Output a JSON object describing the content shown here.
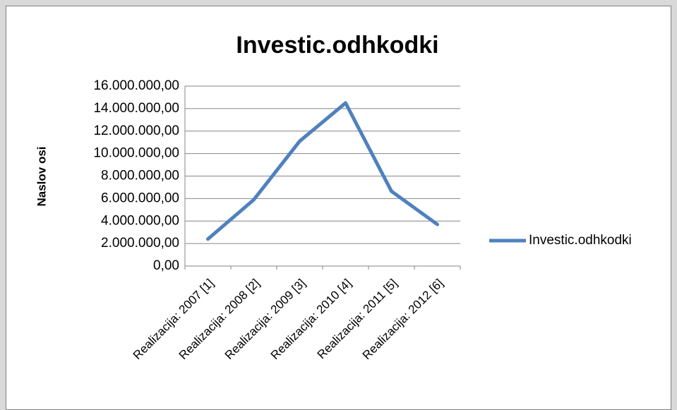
{
  "chart_data": {
    "type": "line",
    "title": "Investic.odhkodki",
    "y_axis_label": "Naslov osi",
    "categories": [
      "Realizacija: 2007 [1]",
      "Realizacija: 2008 [2]",
      "Realizacija: 2009 [3]",
      "Realizacija: 2010 [4]",
      "Realizacija: 2011 [5]",
      "Realizacija: 2012 [6]"
    ],
    "series": [
      {
        "name": "Investic.odhkodki",
        "color": "#4f81bd",
        "values": [
          2400000,
          5900000,
          11100000,
          14500000,
          6650000,
          3700000
        ]
      }
    ],
    "ylim": [
      0,
      16000000
    ],
    "yticks": [
      {
        "value": 0,
        "label": "0,00"
      },
      {
        "value": 2000000,
        "label": "2.000.000,00"
      },
      {
        "value": 4000000,
        "label": "4.000.000,00"
      },
      {
        "value": 6000000,
        "label": "6.000.000,00"
      },
      {
        "value": 8000000,
        "label": "8.000.000,00"
      },
      {
        "value": 10000000,
        "label": "10.000.000,00"
      },
      {
        "value": 12000000,
        "label": "12.000.000,00"
      },
      {
        "value": 14000000,
        "label": "14.000.000,00"
      },
      {
        "value": 16000000,
        "label": "16.000.000,00"
      }
    ],
    "grid": true,
    "legend": "right"
  }
}
